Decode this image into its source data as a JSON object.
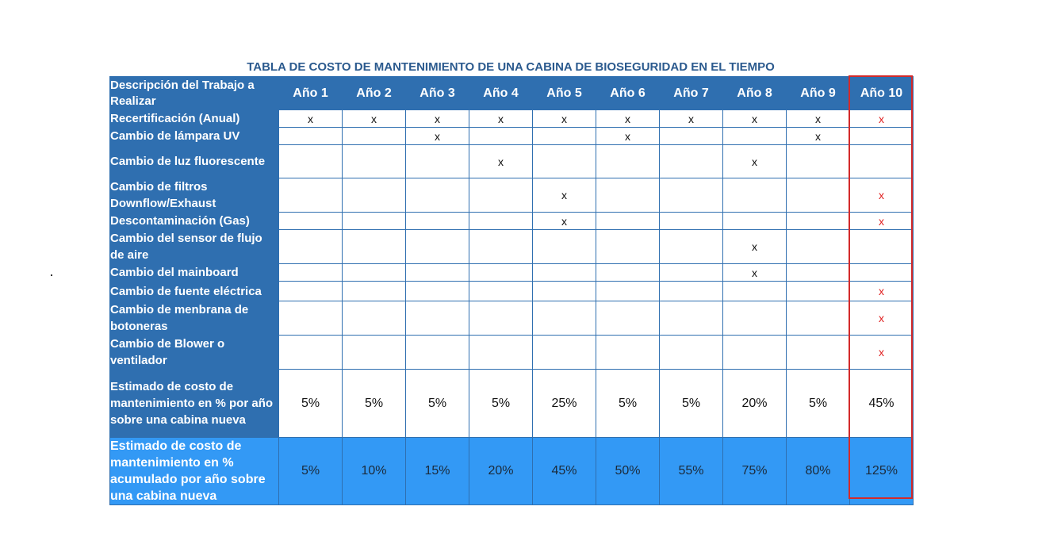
{
  "title": "TABLA DE COSTO DE MANTENIMIENTO DE UNA CABINA DE BIOSEGURIDAD EN EL TIEMPO",
  "header": {
    "description_label": "Descripción del Trabajo a Realizar",
    "years": [
      "Año 1",
      "Año 2",
      "Año 3",
      "Año 4",
      "Año 5",
      "Año 6",
      "Año 7",
      "Año 8",
      "Año 9",
      "Año 10"
    ]
  },
  "rows": [
    {
      "label": "Recertificación (Anual)",
      "marks": [
        "x",
        "x",
        "x",
        "x",
        "x",
        "x",
        "x",
        "x",
        "x",
        "x"
      ]
    },
    {
      "label": "Cambio de lámpara UV",
      "marks": [
        "",
        "",
        "x",
        "",
        "",
        "x",
        "",
        "",
        "x",
        ""
      ]
    },
    {
      "label": "Cambio de luz fluorescente",
      "marks": [
        "",
        "",
        "",
        "x",
        "",
        "",
        "",
        "x",
        "",
        ""
      ]
    },
    {
      "label": "Cambio de filtros Downflow/Exhaust",
      "marks": [
        "",
        "",
        "",
        "",
        "x",
        "",
        "",
        "",
        "",
        "x"
      ]
    },
    {
      "label": "Descontaminación (Gas)",
      "marks": [
        "",
        "",
        "",
        "",
        "x",
        "",
        "",
        "",
        "",
        "x"
      ]
    },
    {
      "label": "Cambio del sensor de flujo de aire",
      "marks": [
        "",
        "",
        "",
        "",
        "",
        "",
        "",
        "x",
        "",
        ""
      ]
    },
    {
      "label": "Cambio del mainboard",
      "marks": [
        "",
        "",
        "",
        "",
        "",
        "",
        "",
        "x",
        "",
        ""
      ]
    },
    {
      "label": "Cambio de fuente eléctrica",
      "marks": [
        "",
        "",
        "",
        "",
        "",
        "",
        "",
        "",
        "",
        "x"
      ]
    },
    {
      "label": "Cambio de menbrana de botoneras",
      "marks": [
        "",
        "",
        "",
        "",
        "",
        "",
        "",
        "",
        "",
        "x"
      ]
    },
    {
      "label": "Cambio de Blower o ventilador",
      "marks": [
        "",
        "",
        "",
        "",
        "",
        "",
        "",
        "",
        "",
        "x"
      ]
    }
  ],
  "annual_estimate": {
    "label": "Estimado de costo de mantenimiento en % por año sobre  una cabina nueva",
    "values": [
      "5%",
      "5%",
      "5%",
      "5%",
      "25%",
      "5%",
      "5%",
      "20%",
      "5%",
      "45%"
    ]
  },
  "cumulative_estimate": {
    "label": "Estimado de costo de mantenimiento en % acumulado por año sobre una cabina nueva",
    "values": [
      "5%",
      "10%",
      "15%",
      "20%",
      "45%",
      "50%",
      "55%",
      "75%",
      "80%",
      "125%"
    ]
  },
  "colors": {
    "header_blue": "#2f6fb0",
    "cumulative_blue": "#3399f5",
    "highlight_red": "#d32a2a",
    "title_blue": "#2b5a8e"
  }
}
